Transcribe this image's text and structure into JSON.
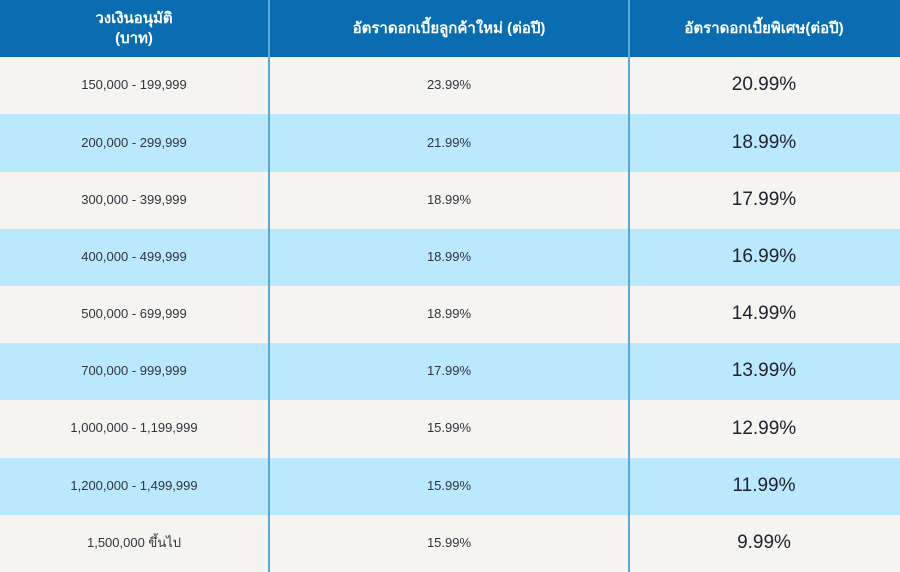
{
  "colors": {
    "header_bg": "#0a6db1",
    "header_text": "#ffffff",
    "row_light": "#f5f4f1",
    "row_blue": "#bae8fd",
    "column_divider": "#5aa8d8",
    "body_text": "#33333c"
  },
  "table": {
    "headers": [
      {
        "line1": "วงเงินอนุมัติ",
        "line2": "(บาท)"
      },
      {
        "label": "อัตราดอกเบี้ยลูกค้าใหม่ (ต่อปี)"
      },
      {
        "label": "อัตราดอกเบี้ยพิเศษ(ต่อปี)"
      }
    ],
    "rows": [
      {
        "limit": "150,000 - 199,999",
        "new_rate": "23.99%",
        "special_rate": "20.99%"
      },
      {
        "limit": "200,000 - 299,999",
        "new_rate": "21.99%",
        "special_rate": "18.99%"
      },
      {
        "limit": "300,000 - 399,999",
        "new_rate": "18.99%",
        "special_rate": "17.99%"
      },
      {
        "limit": "400,000 - 499,999",
        "new_rate": "18.99%",
        "special_rate": "16.99%"
      },
      {
        "limit": "500,000 - 699,999",
        "new_rate": "18.99%",
        "special_rate": "14.99%"
      },
      {
        "limit": "700,000 - 999,999",
        "new_rate": "17.99%",
        "special_rate": "13.99%"
      },
      {
        "limit": "1,000,000 - 1,199,999",
        "new_rate": "15.99%",
        "special_rate": "12.99%"
      },
      {
        "limit": "1,200,000 - 1,499,999",
        "new_rate": "15.99%",
        "special_rate": "11.99%"
      },
      {
        "limit": "1,500,000 ขึ้นไป",
        "new_rate": "15.99%",
        "special_rate": "9.99%"
      }
    ]
  },
  "chart_data": {
    "type": "table",
    "title": "",
    "columns": [
      "วงเงินอนุมัติ (บาท)",
      "อัตราดอกเบี้ยลูกค้าใหม่ (ต่อปี)",
      "อัตราดอกเบี้ยพิเศษ(ต่อปี)"
    ],
    "rows": [
      [
        "150,000 - 199,999",
        "23.99%",
        "20.99%"
      ],
      [
        "200,000 - 299,999",
        "21.99%",
        "18.99%"
      ],
      [
        "300,000 - 399,999",
        "18.99%",
        "17.99%"
      ],
      [
        "400,000 - 499,999",
        "18.99%",
        "16.99%"
      ],
      [
        "500,000 - 699,999",
        "18.99%",
        "14.99%"
      ],
      [
        "700,000 - 999,999",
        "17.99%",
        "13.99%"
      ],
      [
        "1,000,000 - 1,199,999",
        "15.99%",
        "12.99%"
      ],
      [
        "1,200,000 - 1,499,999",
        "15.99%",
        "11.99%"
      ],
      [
        "1,500,000 ขึ้นไป",
        "15.99%",
        "9.99%"
      ]
    ]
  }
}
